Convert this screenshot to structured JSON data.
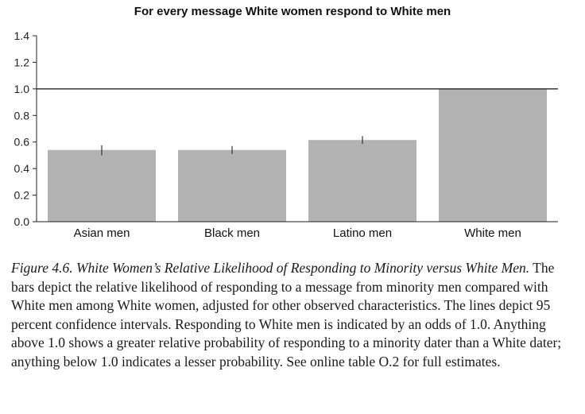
{
  "chart_data": {
    "type": "bar",
    "title": "For every message White women respond to White men",
    "categories": [
      "Asian men",
      "Black men",
      "Latino men",
      "White men"
    ],
    "values": [
      0.54,
      0.54,
      0.615,
      1.0
    ],
    "error_low": [
      0.5,
      0.51,
      0.585,
      null
    ],
    "error_high": [
      0.575,
      0.57,
      0.645,
      null
    ],
    "reference_line": 1.0,
    "ylim": [
      0,
      1.4
    ],
    "yticks": [
      "0.0",
      "0.2",
      "0.4",
      "0.6",
      "0.8",
      "1.0",
      "1.2",
      "1.4"
    ],
    "bar_color": "#b3b3b3",
    "grid": false
  },
  "caption": {
    "lead": "Figure 4.6.  White Women’s Relative Likelihood of Responding to Minority versus White Men.",
    "body": " The bars depict the relative likelihood of responding to a message from minority men compared with White men among White women, adjusted for other observed characteristics. The lines depict 95 percent confidence intervals. Responding to White men is indicated by an odds of 1.0. Anything above 1.0 shows a greater relative probability of responding to a minority dater than a White dater; anything below 1.0 indicates a lesser probability. See online table O.2 for full estimates."
  }
}
